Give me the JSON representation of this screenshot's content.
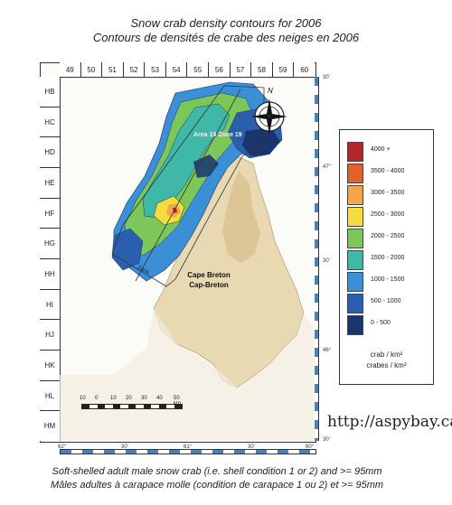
{
  "title": {
    "en": "Snow crab density contours for 2006",
    "fr": "Contours de densités de crabe des neiges en 2006"
  },
  "grid": {
    "columns": [
      "49",
      "50",
      "51",
      "52",
      "53",
      "54",
      "55",
      "56",
      "57",
      "58",
      "59",
      "60"
    ],
    "rows": [
      "HB",
      "HC",
      "HD",
      "HE",
      "HF",
      "HG",
      "HH",
      "HI",
      "HJ",
      "HK",
      "HL",
      "HM"
    ]
  },
  "map": {
    "area_label": "Area 19 Zone 19",
    "zone_label": "Zone",
    "place_en": "Cape Breton",
    "place_fr": "Cap-Breton",
    "north_label": "N",
    "lat_labels": [
      "30'",
      "47°",
      "30'",
      "46°",
      "30'"
    ],
    "lon_labels": [
      "62°",
      "30'",
      "61°",
      "30'",
      "60°"
    ],
    "scale_labels": [
      "10",
      "0",
      "10",
      "20",
      "30",
      "40",
      "50 km"
    ]
  },
  "legend": {
    "entries": [
      {
        "label": "4000 +",
        "color": "#b0282a"
      },
      {
        "label": "3500 - 4000",
        "color": "#e0622c"
      },
      {
        "label": "3000 - 3500",
        "color": "#f2a64a"
      },
      {
        "label": "2500 - 3000",
        "color": "#f5dc3c"
      },
      {
        "label": "2000 - 2500",
        "color": "#7cc65a"
      },
      {
        "label": "1500 - 2000",
        "color": "#3fb8a8"
      },
      {
        "label": "1000 - 1500",
        "color": "#3a8fd6"
      },
      {
        "label": "500 - 1000",
        "color": "#2a5fae"
      },
      {
        "label": "0 - 500",
        "color": "#1a3470"
      }
    ],
    "unit_en": "crab / km²",
    "unit_fr": "crabes / km²"
  },
  "caption": {
    "en": "Soft-shelled adult male snow crab (i.e. shell condition 1 or 2) and >= 95mm",
    "fr": "Mâles adultes à carapace molle (condition de carapace 1 ou 2) et >= 95mm"
  },
  "watermark": "http://aspybay.ca"
}
